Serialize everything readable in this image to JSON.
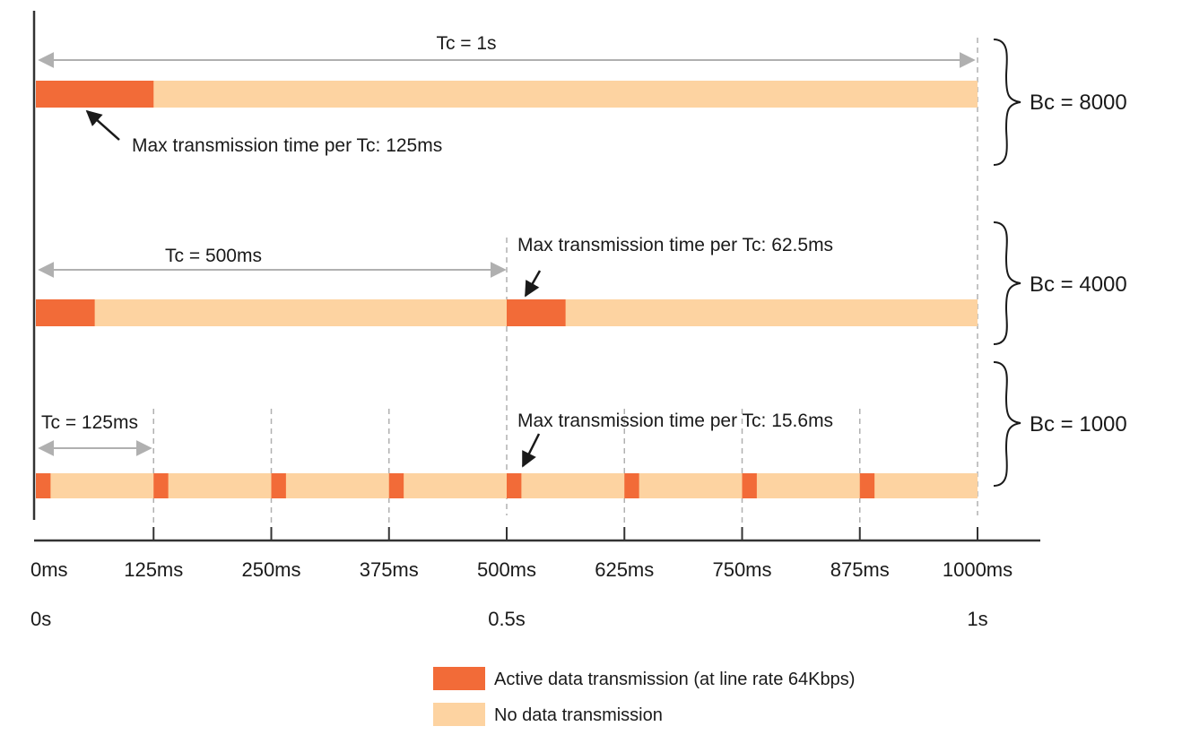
{
  "colors": {
    "active": "#f26b38",
    "idle": "#fdd3a1",
    "axis": "#333333",
    "dashed": "#b0b0b0",
    "arrow": "#b0b0b0"
  },
  "rows": [
    {
      "tc_label": "Tc = 1s",
      "bc_label": "Bc = 8000",
      "annotation": "Max transmission time per Tc: 125ms",
      "interval_ms": 1000,
      "active_ms": 125
    },
    {
      "tc_label": "Tc = 500ms",
      "bc_label": "Bc = 4000",
      "annotation": "Max transmission time per Tc: 62.5ms",
      "interval_ms": 500,
      "active_ms": 62.5
    },
    {
      "tc_label": "Tc = 125ms",
      "bc_label": "Bc = 1000",
      "annotation": "Max transmission time per Tc: 15.6ms",
      "interval_ms": 125,
      "active_ms": 15.6
    }
  ],
  "axis": {
    "ms_ticks": [
      "0ms",
      "125ms",
      "250ms",
      "375ms",
      "500ms",
      "625ms",
      "750ms",
      "875ms",
      "1000ms"
    ],
    "s_labels": [
      {
        "label": "0s",
        "ms": 0
      },
      {
        "label": "0.5s",
        "ms": 500
      },
      {
        "label": "1s",
        "ms": 1000
      }
    ]
  },
  "legend": {
    "active": "Active data transmission (at line rate 64Kbps)",
    "idle": "No data transmission"
  }
}
